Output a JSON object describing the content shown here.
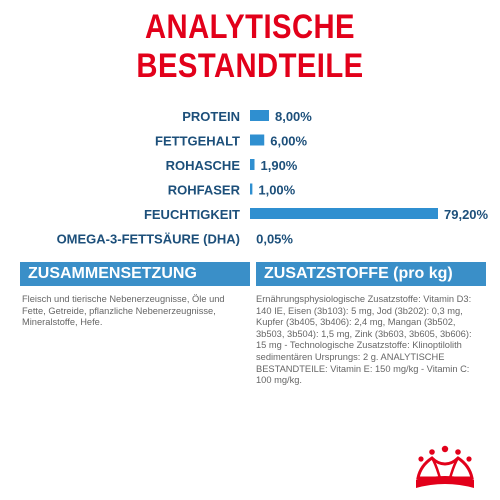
{
  "title": "ANALYTISCHE BESTANDTEILE",
  "colors": {
    "title": "#e2001a",
    "bar": "#2f8fd0",
    "label": "#1c4f7a",
    "panel": "#3a8fc8"
  },
  "chart_data": {
    "type": "bar",
    "orientation": "horizontal",
    "categories": [
      "PROTEIN",
      "FETTGEHALT",
      "ROHASCHE",
      "ROHFASER",
      "FEUCHTIGKEIT",
      "OMEGA-3-FETTSÄURE (DHA)"
    ],
    "values": [
      8.0,
      6.0,
      1.9,
      1.0,
      79.2,
      0.05
    ],
    "value_labels": [
      "8,00%",
      "6,00%",
      "1,90%",
      "1,00%",
      "79,20%",
      "0,05%"
    ],
    "unit": "%",
    "xlim": [
      0,
      79.2
    ]
  },
  "sections": {
    "left": {
      "heading": "ZUSAMMENSETZUNG",
      "body": "Fleisch und tierische Nebenerzeugnisse, Öle und Fette, Getreide, pflanzliche Nebenerzeugnisse, Mineralstoffe, Hefe."
    },
    "right": {
      "heading": "ZUSATZSTOFFE (pro kg)",
      "body": "Ernährungsphysiologische Zusatzstoffe: Vitamin D3: 140 IE, Eisen (3b103): 5 mg, Jod (3b202): 0,3 mg, Kupfer (3b405, 3b406): 2,4 mg, Mangan (3b502, 3b503, 3b504): 1,5 mg, Zink (3b603, 3b605, 3b606): 15 mg - Technologische Zusatzstoffe: Klinoptilolith sedimentären Ursprungs: 2 g. ANALYTISCHE BESTANDTEILE: Vitamin E: 150 mg/kg - Vitamin C: 100 mg/kg."
    }
  },
  "logo": {
    "name": "crown-logo",
    "color": "#e2001a"
  }
}
